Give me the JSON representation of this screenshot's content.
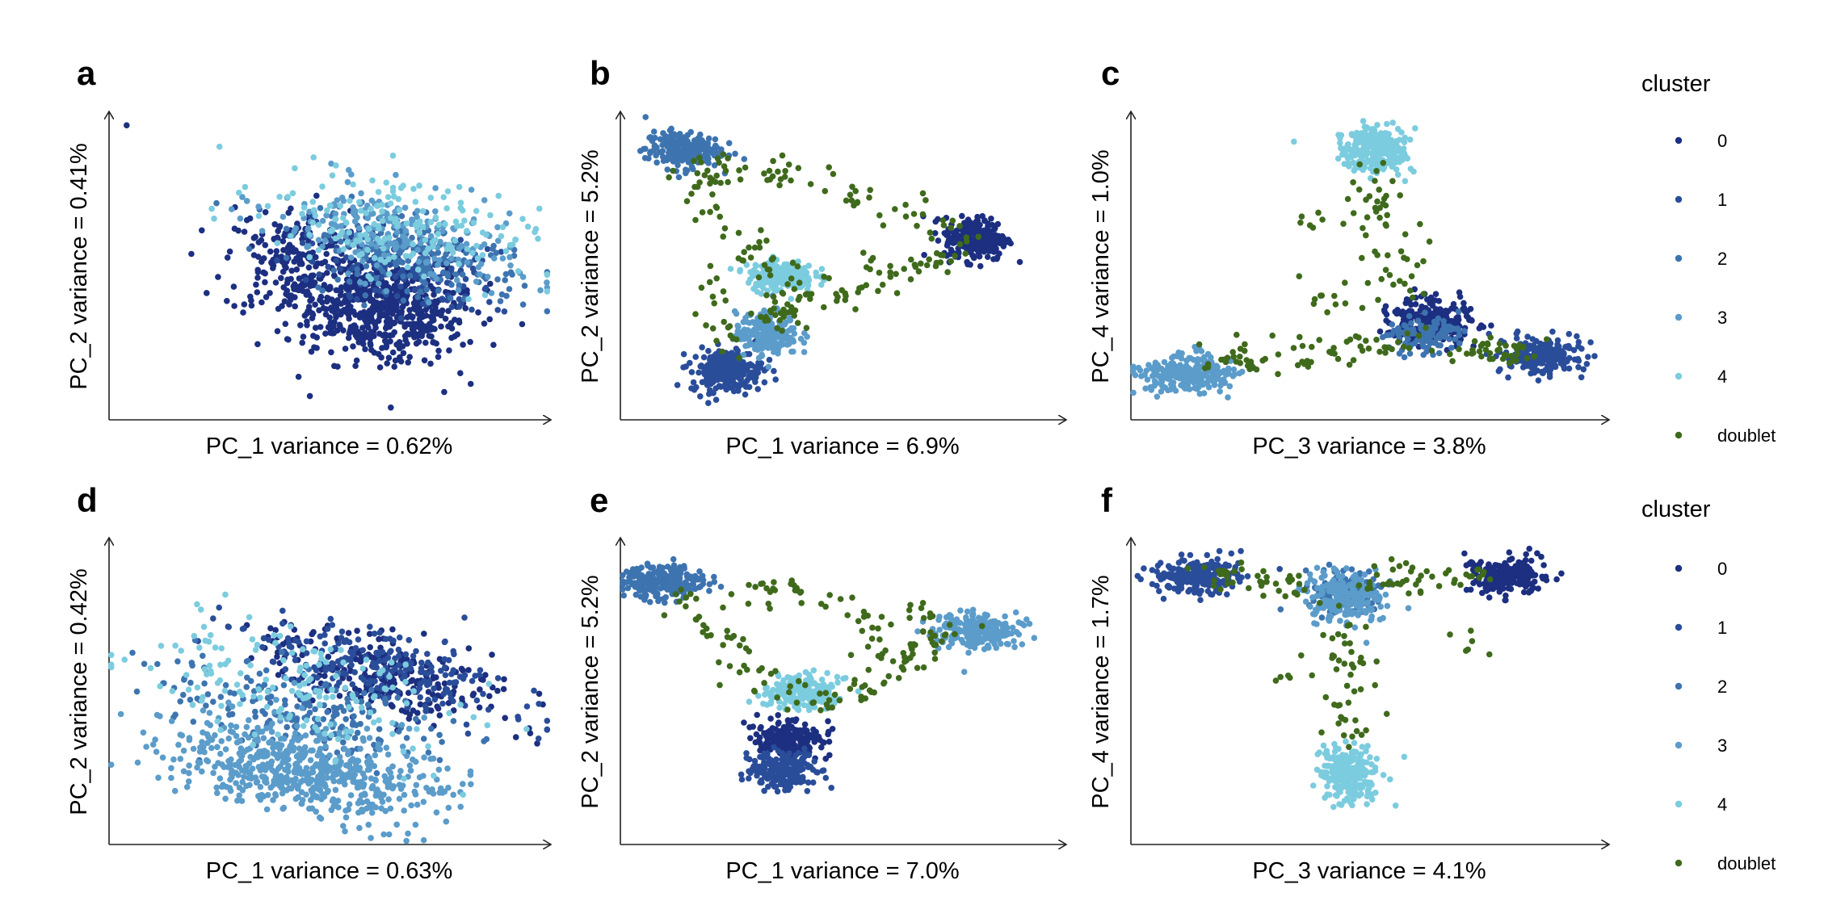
{
  "figure": {
    "legend_title": "cluster",
    "clusters": [
      {
        "label": "0",
        "color": "#1c2f80"
      },
      {
        "label": "1",
        "color": "#2a4d9a"
      },
      {
        "label": "2",
        "color": "#3d74b0"
      },
      {
        "label": "3",
        "color": "#5b9cca"
      },
      {
        "label": "4",
        "color": "#7cccdf"
      },
      {
        "label": "doublet",
        "color": "#3f6a1c"
      }
    ]
  },
  "chart_data": [
    {
      "panel": "a",
      "type": "scatter",
      "title": "",
      "xlabel": "PC_1 variance = 0.62%",
      "ylabel": "PC_2 variance = 0.41%",
      "xlim": [
        0,
        10
      ],
      "ylim": [
        0,
        10
      ],
      "series": [
        {
          "name": "0",
          "color": "#1c2f80",
          "clouds": [
            {
              "cx": 6.2,
              "cy": 3.6,
              "sx": 1.0,
              "sy": 0.8,
              "n": 600,
              "rot": -20
            },
            {
              "cx": 4.2,
              "cy": 5.2,
              "sx": 0.8,
              "sy": 0.9,
              "n": 200
            }
          ],
          "extra": [
            [
              0.4,
              9.6
            ],
            [
              6.4,
              0.4
            ]
          ]
        },
        {
          "name": "1",
          "color": "#2a4d9a",
          "clouds": [
            {
              "cx": 6.6,
              "cy": 5.0,
              "sx": 1.2,
              "sy": 0.6,
              "n": 160,
              "rot": -20
            }
          ]
        },
        {
          "name": "2",
          "color": "#3d74b0",
          "clouds": [
            {
              "cx": 7.0,
              "cy": 5.3,
              "sx": 1.3,
              "sy": 0.6,
              "n": 200,
              "rot": -20
            }
          ]
        },
        {
          "name": "3",
          "color": "#5b9cca",
          "clouds": [
            {
              "cx": 6.4,
              "cy": 6.0,
              "sx": 1.4,
              "sy": 0.7,
              "n": 220,
              "rot": -20
            }
          ]
        },
        {
          "name": "4",
          "color": "#7cccdf",
          "clouds": [
            {
              "cx": 6.4,
              "cy": 6.4,
              "sx": 1.5,
              "sy": 0.8,
              "n": 180,
              "rot": -20
            }
          ]
        }
      ]
    },
    {
      "panel": "b",
      "type": "scatter",
      "title": "",
      "xlabel": "PC_1 variance = 6.9%",
      "ylabel": "PC_2 variance = 5.2%",
      "xlim": [
        0,
        10
      ],
      "ylim": [
        0,
        10
      ],
      "series": [
        {
          "name": "0",
          "color": "#1c2f80",
          "clouds": [
            {
              "cx": 8.0,
              "cy": 5.9,
              "sx": 0.35,
              "sy": 0.35,
              "n": 260
            }
          ]
        },
        {
          "name": "1",
          "color": "#2a4d9a",
          "clouds": [
            {
              "cx": 2.4,
              "cy": 1.6,
              "sx": 0.4,
              "sy": 0.35,
              "n": 240
            }
          ]
        },
        {
          "name": "2",
          "color": "#3d74b0",
          "clouds": [
            {
              "cx": 1.4,
              "cy": 8.8,
              "sx": 0.42,
              "sy": 0.3,
              "n": 220
            }
          ]
        },
        {
          "name": "3",
          "color": "#5b9cca",
          "clouds": [
            {
              "cx": 3.3,
              "cy": 2.8,
              "sx": 0.35,
              "sy": 0.35,
              "n": 200
            }
          ]
        },
        {
          "name": "4",
          "color": "#7cccdf",
          "clouds": [
            {
              "cx": 3.6,
              "cy": 4.7,
              "sx": 0.38,
              "sy": 0.25,
              "n": 200
            }
          ]
        },
        {
          "name": "doublet",
          "color": "#3f6a1c",
          "paths": [
            {
              "from": [
                1.5,
                8.2
              ],
              "to": [
                4.5,
                8.0
              ],
              "n": 40
            },
            {
              "from": [
                1.6,
                8.0
              ],
              "to": [
                3.6,
                4.4
              ],
              "n": 40
            },
            {
              "from": [
                3.0,
                3.2
              ],
              "to": [
                7.9,
                5.7
              ],
              "n": 70
            },
            {
              "from": [
                5.0,
                7.5
              ],
              "to": [
                7.8,
                6.0
              ],
              "n": 30
            },
            {
              "from": [
                2.2,
                4.5
              ],
              "to": [
                2.4,
                2.2
              ],
              "n": 20
            },
            {
              "from": [
                3.6,
                4.3
              ],
              "to": [
                3.5,
                3.1
              ],
              "n": 15
            }
          ]
        }
      ]
    },
    {
      "panel": "c",
      "type": "scatter",
      "title": "",
      "xlabel": "PC_3 variance = 3.8%",
      "ylabel": "PC_4 variance = 1.0%",
      "xlim": [
        0,
        10
      ],
      "ylim": [
        0,
        10
      ],
      "series": [
        {
          "name": "0",
          "color": "#1c2f80",
          "clouds": [
            {
              "cx": 6.3,
              "cy": 3.2,
              "sx": 0.45,
              "sy": 0.35,
              "n": 240
            }
          ]
        },
        {
          "name": "1",
          "color": "#2a4d9a",
          "clouds": [
            {
              "cx": 8.6,
              "cy": 2.1,
              "sx": 0.4,
              "sy": 0.28,
              "n": 220
            }
          ]
        },
        {
          "name": "2",
          "color": "#3d74b0",
          "clouds": [
            {
              "cx": 6.1,
              "cy": 2.8,
              "sx": 0.4,
              "sy": 0.3,
              "n": 120
            }
          ]
        },
        {
          "name": "3",
          "color": "#5b9cca",
          "clouds": [
            {
              "cx": 1.2,
              "cy": 1.5,
              "sx": 0.5,
              "sy": 0.3,
              "n": 260
            }
          ]
        },
        {
          "name": "4",
          "color": "#7cccdf",
          "clouds": [
            {
              "cx": 5.1,
              "cy": 8.8,
              "sx": 0.35,
              "sy": 0.35,
              "n": 260
            }
          ]
        },
        {
          "name": "doublet",
          "color": "#3f6a1c",
          "paths": [
            {
              "from": [
                1.6,
                1.8
              ],
              "to": [
                5.8,
                2.5
              ],
              "n": 70
            },
            {
              "from": [
                5.1,
                8.2
              ],
              "to": [
                5.6,
                4.0
              ],
              "n": 50
            },
            {
              "from": [
                6.6,
                2.4
              ],
              "to": [
                8.3,
                2.1
              ],
              "n": 40
            },
            {
              "from": [
                3.8,
                4.2
              ],
              "to": [
                5.3,
                3.6
              ],
              "n": 12
            },
            {
              "from": [
                4.0,
                7.0
              ],
              "to": [
                4.3,
                6.0
              ],
              "n": 8
            }
          ]
        }
      ]
    },
    {
      "panel": "d",
      "type": "scatter",
      "title": "",
      "xlabel": "PC_1 variance = 0.63%",
      "ylabel": "PC_2 variance = 0.42%",
      "xlim": [
        0,
        10
      ],
      "ylim": [
        0,
        10
      ],
      "series": [
        {
          "name": "0",
          "color": "#1c2f80",
          "clouds": [
            {
              "cx": 6.2,
              "cy": 5.6,
              "sx": 1.5,
              "sy": 0.6,
              "n": 260,
              "rot": -22
            }
          ]
        },
        {
          "name": "1",
          "color": "#2a4d9a",
          "clouds": [
            {
              "cx": 6.0,
              "cy": 5.8,
              "sx": 1.5,
              "sy": 0.6,
              "n": 220,
              "rot": -22
            }
          ]
        },
        {
          "name": "2",
          "color": "#3d74b0",
          "clouds": [
            {
              "cx": 4.6,
              "cy": 4.3,
              "sx": 1.6,
              "sy": 0.7,
              "n": 200,
              "rot": -22
            }
          ]
        },
        {
          "name": "3",
          "color": "#5b9cca",
          "clouds": [
            {
              "cx": 4.4,
              "cy": 2.5,
              "sx": 1.6,
              "sy": 0.7,
              "n": 600,
              "rot": -15
            }
          ]
        },
        {
          "name": "4",
          "color": "#7cccdf",
          "clouds": [
            {
              "cx": 4.2,
              "cy": 5.2,
              "sx": 1.8,
              "sy": 0.9,
              "n": 160,
              "rot": -22
            }
          ]
        }
      ]
    },
    {
      "panel": "e",
      "type": "scatter",
      "title": "",
      "xlabel": "PC_1 variance = 7.0%",
      "ylabel": "PC_2 variance = 5.2%",
      "xlim": [
        0,
        10
      ],
      "ylim": [
        0,
        10
      ],
      "series": [
        {
          "name": "0",
          "color": "#1c2f80",
          "clouds": [
            {
              "cx": 3.8,
              "cy": 3.4,
              "sx": 0.35,
              "sy": 0.3,
              "n": 200
            }
          ]
        },
        {
          "name": "1",
          "color": "#2a4d9a",
          "clouds": [
            {
              "cx": 3.7,
              "cy": 2.4,
              "sx": 0.38,
              "sy": 0.3,
              "n": 220
            }
          ]
        },
        {
          "name": "2",
          "color": "#3d74b0",
          "clouds": [
            {
              "cx": 1.0,
              "cy": 8.6,
              "sx": 0.45,
              "sy": 0.28,
              "n": 240
            }
          ]
        },
        {
          "name": "3",
          "color": "#5b9cca",
          "clouds": [
            {
              "cx": 8.0,
              "cy": 7.0,
              "sx": 0.45,
              "sy": 0.28,
              "n": 240
            }
          ]
        },
        {
          "name": "4",
          "color": "#7cccdf",
          "clouds": [
            {
              "cx": 4.1,
              "cy": 5.0,
              "sx": 0.4,
              "sy": 0.28,
              "n": 200
            }
          ]
        },
        {
          "name": "doublet",
          "color": "#3f6a1c",
          "paths": [
            {
              "from": [
                1.3,
                8.2
              ],
              "to": [
                4.0,
                4.5
              ],
              "n": 45
            },
            {
              "from": [
                2.8,
                8.3
              ],
              "to": [
                4.8,
                8.1
              ],
              "n": 25
            },
            {
              "from": [
                4.4,
                4.5
              ],
              "to": [
                7.6,
                6.9
              ],
              "n": 60
            },
            {
              "from": [
                5.2,
                8.0
              ],
              "to": [
                6.3,
                5.8
              ],
              "n": 20
            },
            {
              "from": [
                6.4,
                7.7
              ],
              "to": [
                6.9,
                7.3
              ],
              "n": 10
            }
          ]
        }
      ]
    },
    {
      "panel": "f",
      "type": "scatter",
      "title": "",
      "xlabel": "PC_3 variance = 4.1%",
      "ylabel": "PC_4 variance = 1.7%",
      "xlim": [
        0,
        10
      ],
      "ylim": [
        0,
        10
      ],
      "series": [
        {
          "name": "0",
          "color": "#1c2f80",
          "clouds": [
            {
              "cx": 7.9,
              "cy": 8.8,
              "sx": 0.45,
              "sy": 0.3,
              "n": 220
            }
          ]
        },
        {
          "name": "1",
          "color": "#2a4d9a",
          "clouds": [
            {
              "cx": 1.4,
              "cy": 8.8,
              "sx": 0.45,
              "sy": 0.28,
              "n": 220
            }
          ]
        },
        {
          "name": "2",
          "color": "#3d74b0",
          "clouds": [
            {
              "cx": 4.5,
              "cy": 8.3,
              "sx": 0.4,
              "sy": 0.35,
              "n": 120
            }
          ]
        },
        {
          "name": "3",
          "color": "#5b9cca",
          "clouds": [
            {
              "cx": 4.5,
              "cy": 8.0,
              "sx": 0.4,
              "sy": 0.45,
              "n": 200
            }
          ]
        },
        {
          "name": "4",
          "color": "#7cccdf",
          "clouds": [
            {
              "cx": 4.6,
              "cy": 2.3,
              "sx": 0.3,
              "sy": 0.45,
              "n": 240
            }
          ]
        },
        {
          "name": "doublet",
          "color": "#3f6a1c",
          "paths": [
            {
              "from": [
                1.8,
                8.8
              ],
              "to": [
                3.9,
                8.5
              ],
              "n": 40
            },
            {
              "from": [
                5.0,
                8.6
              ],
              "to": [
                7.5,
                8.8
              ],
              "n": 45
            },
            {
              "from": [
                4.5,
                7.3
              ],
              "to": [
                4.6,
                3.2
              ],
              "n": 45
            },
            {
              "from": [
                3.2,
                6.0
              ],
              "to": [
                3.4,
                5.4
              ],
              "n": 6
            },
            {
              "from": [
                6.6,
                7.0
              ],
              "to": [
                7.2,
                6.4
              ],
              "n": 6
            }
          ]
        }
      ]
    }
  ]
}
